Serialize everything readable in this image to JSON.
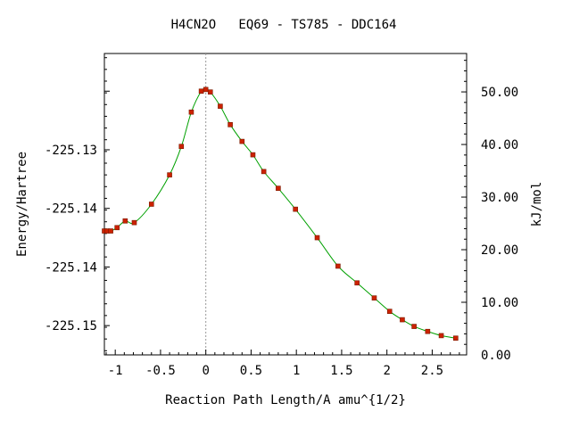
{
  "chart_data": {
    "type": "line",
    "title": "H4CN2O   EQ69 - TS785 - DDC164",
    "xlabel": "Reaction Path Length/A amu^{1/2}",
    "ylabel": "Energy/Hartree",
    "y2label": "kJ/mol",
    "xlim": [
      -1.12,
      2.88
    ],
    "ylim": [
      -225.1545,
      -225.1185
    ],
    "y2lim": [
      0.0,
      57.3
    ],
    "x_ticks": [
      -1,
      -0.5,
      0,
      0.5,
      1,
      1.5,
      2,
      2.5
    ],
    "x_tick_labels": [
      "-1",
      "-0.5",
      "0",
      "0.5",
      "1",
      "1.5",
      "2",
      "2.5"
    ],
    "y_ticks": [
      -225.151,
      -225.144,
      -225.137,
      -225.13,
      -225.123
    ],
    "y_tick_labels": [
      "-225.15",
      "-225.14",
      "-225.14",
      "-225.13",
      ""
    ],
    "y2_ticks": [
      0,
      10,
      20,
      30,
      40,
      50
    ],
    "y2_tick_labels": [
      "0.00",
      "10.00",
      "20.00",
      "30.00",
      "40.00",
      "50.00"
    ],
    "ts_x": 0.0,
    "line_color": "#00a000",
    "marker_color": "#cc2200",
    "series": [
      {
        "name": "",
        "x": [
          -1.12,
          -1.09,
          -1.05,
          -0.98,
          -0.89,
          -0.79,
          -0.6,
          -0.4,
          -0.27,
          -0.16,
          -0.05,
          0.0,
          0.05,
          0.16,
          0.27,
          0.4,
          0.52,
          0.64,
          0.8,
          0.99,
          1.23,
          1.46,
          1.67,
          1.86,
          2.03,
          2.17,
          2.3,
          2.45,
          2.6,
          2.76
        ],
        "y": [
          -225.1397,
          -225.1397,
          -225.1397,
          -225.1393,
          -225.1385,
          -225.1387,
          -225.1365,
          -225.133,
          -225.1296,
          -225.1255,
          -225.123,
          -225.1228,
          -225.1231,
          -225.1248,
          -225.127,
          -225.129,
          -225.1306,
          -225.1326,
          -225.1346,
          -225.1371,
          -225.1405,
          -225.1439,
          -225.1459,
          -225.1477,
          -225.1493,
          -225.1503,
          -225.1511,
          -225.1517,
          -225.1522,
          -225.1525
        ]
      }
    ]
  }
}
